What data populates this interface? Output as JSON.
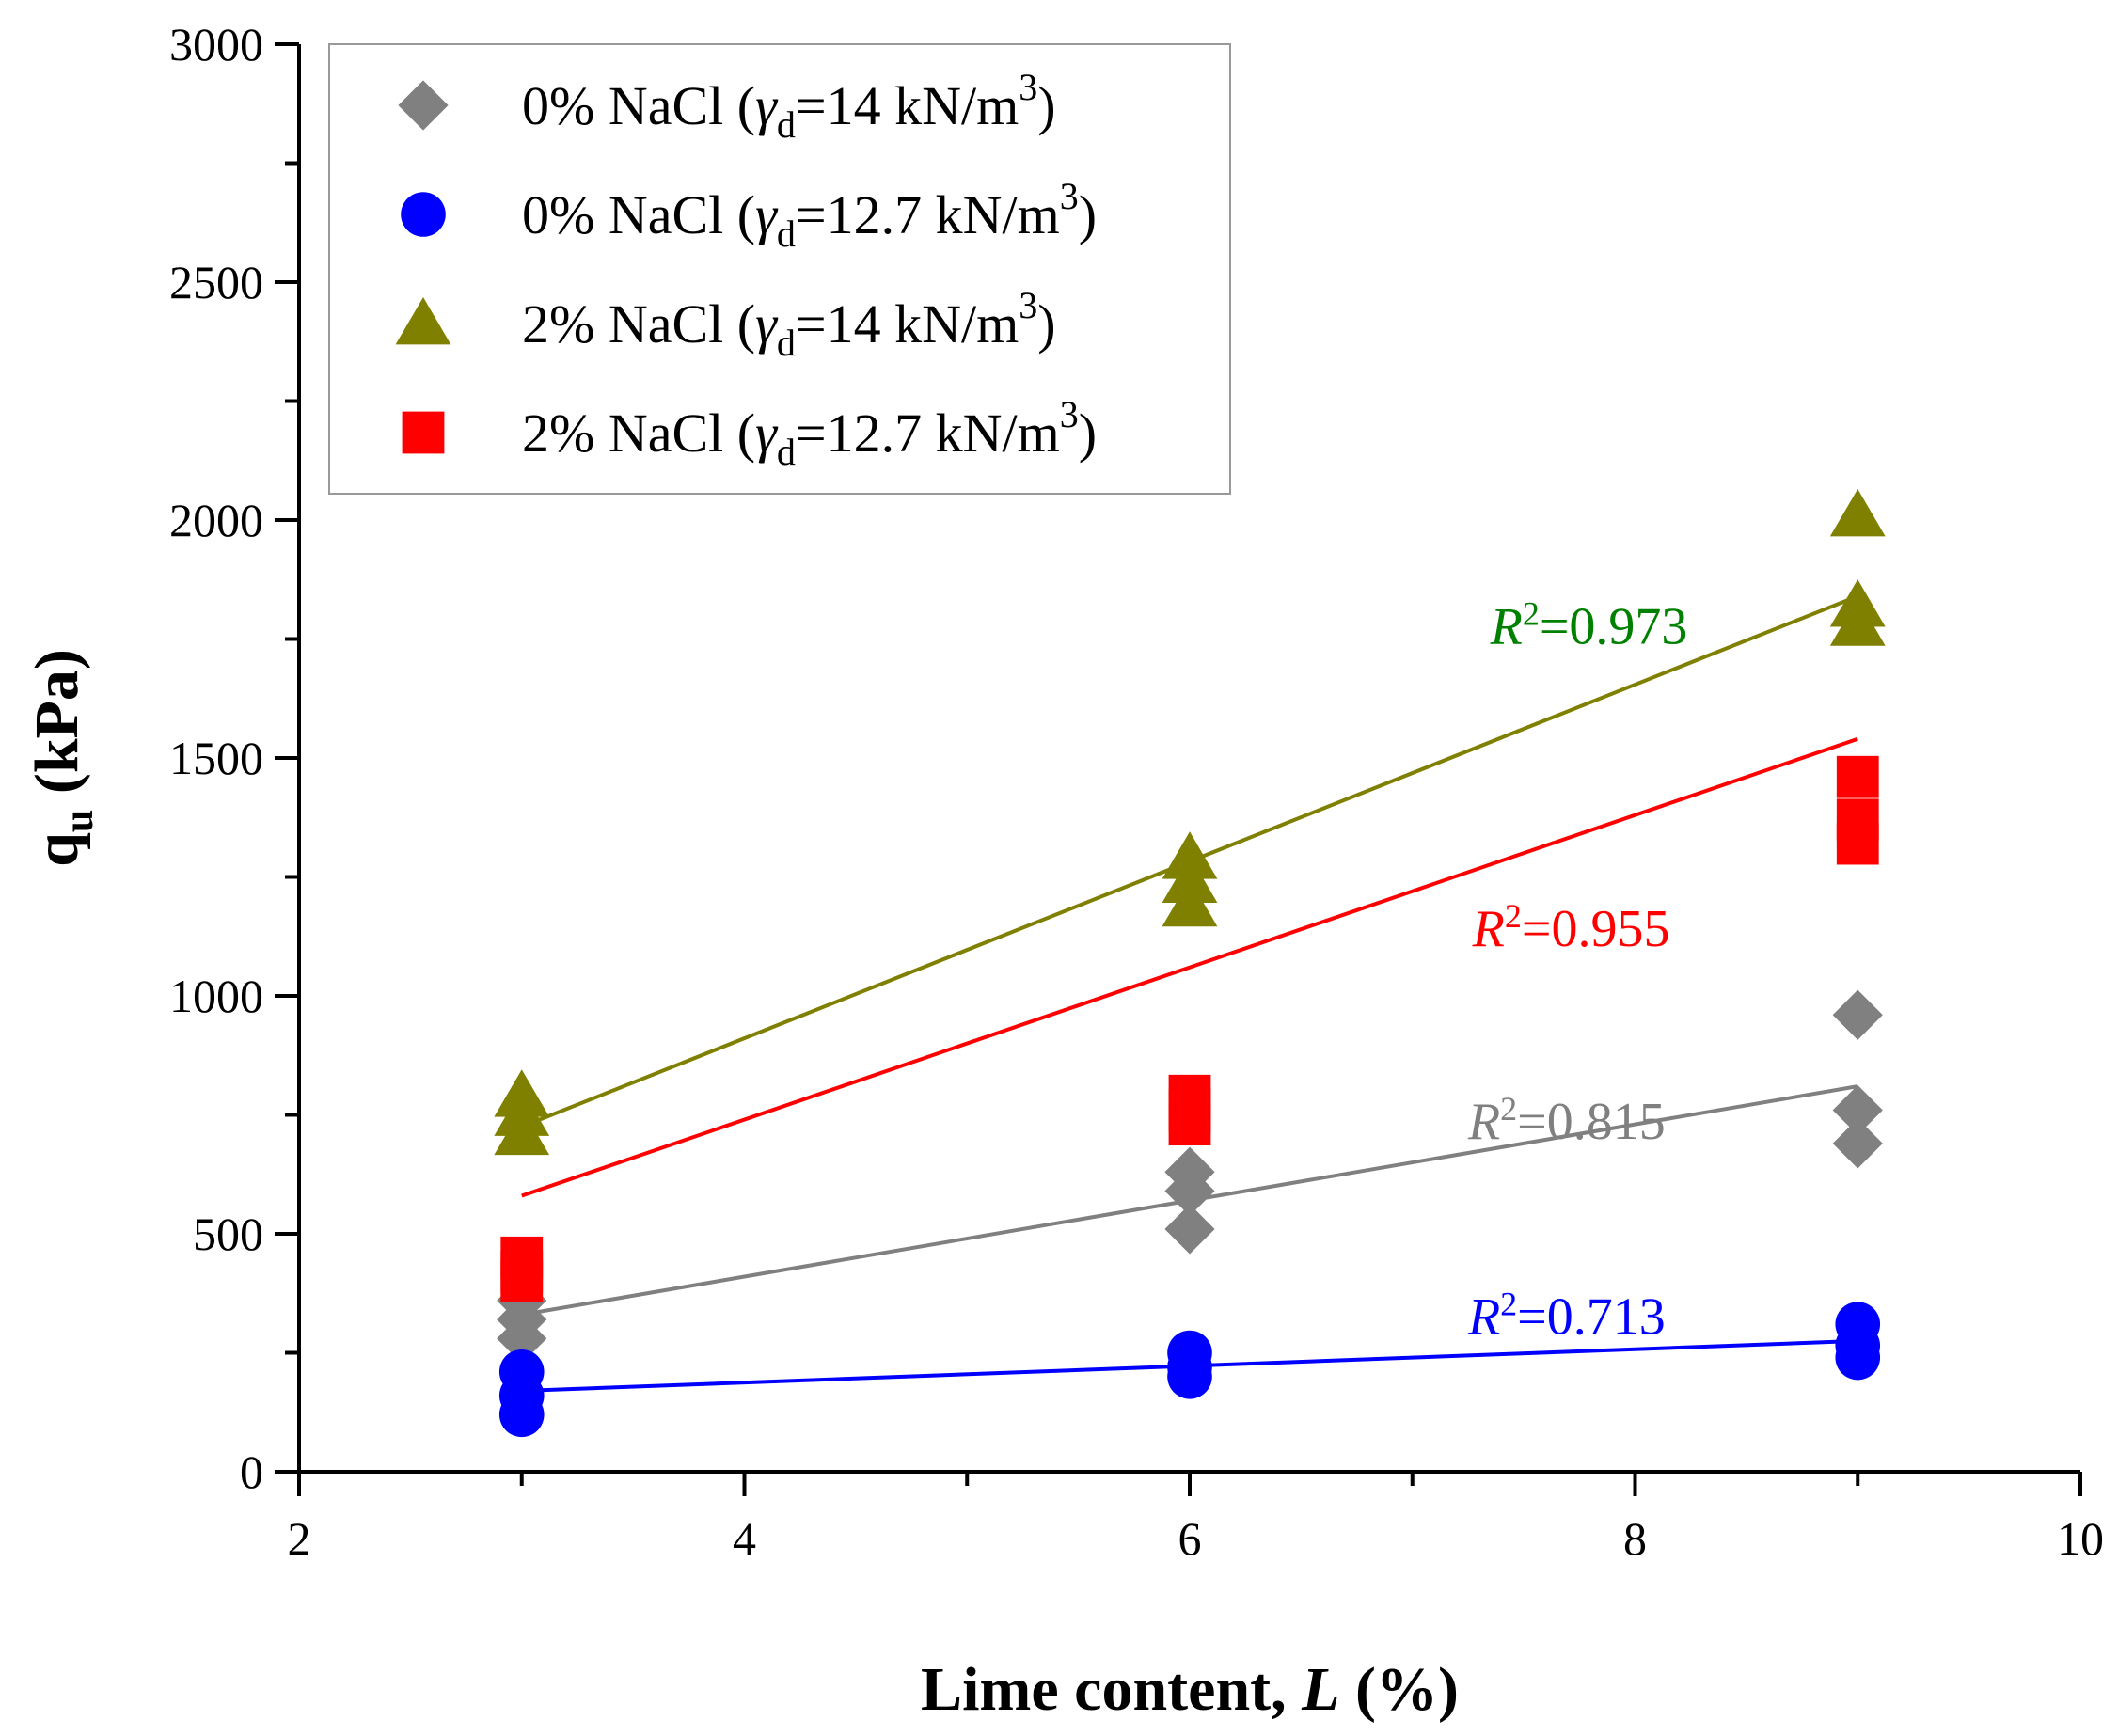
{
  "chart_data": {
    "type": "scatter",
    "title": "",
    "xlabel_main": "Lime content, ",
    "xlabel_italic": "L",
    "xlabel_unit": " (%)",
    "ylabel_main": "q",
    "ylabel_sub": "u",
    "ylabel_unit": " (kPa)",
    "xlim": [
      2,
      10
    ],
    "ylim": [
      0,
      3000
    ],
    "x_ticks": [
      2,
      4,
      6,
      8,
      10
    ],
    "x_tick_labels": [
      "2",
      "4",
      "6",
      "8",
      "10"
    ],
    "y_ticks": [
      0,
      500,
      1000,
      1500,
      2000,
      2500,
      3000
    ],
    "y_tick_labels": [
      "0",
      "500",
      "1000",
      "1500",
      "2000",
      "2500",
      "3000"
    ],
    "grid": false,
    "legend_position": "top-left",
    "series": [
      {
        "name": "0% NaCl (γd=14 kN/m3)",
        "legend_prefix": "0% NaCl (",
        "legend_gamma": "γ",
        "legend_gamma_sub": "d",
        "legend_value": "=14 kN/m",
        "legend_exp": "3",
        "legend_suffix": ")",
        "marker": "diamond",
        "color": "#808080",
        "trend_color": "#808080",
        "points": [
          {
            "x": 3,
            "y": 280
          },
          {
            "x": 3,
            "y": 320
          },
          {
            "x": 3,
            "y": 360
          },
          {
            "x": 6,
            "y": 510
          },
          {
            "x": 6,
            "y": 590
          },
          {
            "x": 6,
            "y": 630
          },
          {
            "x": 9,
            "y": 690
          },
          {
            "x": 9,
            "y": 760
          },
          {
            "x": 9,
            "y": 960
          }
        ],
        "trendline": [
          {
            "x": 3,
            "y": 330
          },
          {
            "x": 9,
            "y": 810
          }
        ],
        "r2_label": "=0.815",
        "r2_color": "#808080",
        "r2_anchor": {
          "x": 7.25,
          "y": 700
        }
      },
      {
        "name": "0% NaCl (γd=12.7 kN/m3)",
        "legend_prefix": "0% NaCl (",
        "legend_gamma": "γ",
        "legend_gamma_sub": "d",
        "legend_value": "=12.7 kN/m",
        "legend_exp": "3",
        "legend_suffix": ")",
        "marker": "circle",
        "color": "#0000ff",
        "trend_color": "#0000ff",
        "points": [
          {
            "x": 3,
            "y": 120
          },
          {
            "x": 3,
            "y": 160
          },
          {
            "x": 3,
            "y": 210
          },
          {
            "x": 6,
            "y": 200
          },
          {
            "x": 6,
            "y": 220
          },
          {
            "x": 6,
            "y": 250
          },
          {
            "x": 9,
            "y": 240
          },
          {
            "x": 9,
            "y": 265
          },
          {
            "x": 9,
            "y": 310
          }
        ],
        "trendline": [
          {
            "x": 3,
            "y": 170
          },
          {
            "x": 9,
            "y": 275
          }
        ],
        "r2_label": "=0.713",
        "r2_color": "#0000ff",
        "r2_anchor": {
          "x": 7.25,
          "y": 290
        }
      },
      {
        "name": "2% NaCl (γd=14 kN/m3)",
        "legend_prefix": "2% NaCl (",
        "legend_gamma": "γ",
        "legend_gamma_sub": "d",
        "legend_value": "=14 kN/m",
        "legend_exp": "3",
        "legend_suffix": ")",
        "marker": "triangle",
        "color": "#808000",
        "trend_color": "#808000",
        "points": [
          {
            "x": 3,
            "y": 710
          },
          {
            "x": 3,
            "y": 750
          },
          {
            "x": 3,
            "y": 790
          },
          {
            "x": 6,
            "y": 1190
          },
          {
            "x": 6,
            "y": 1240
          },
          {
            "x": 6,
            "y": 1290
          },
          {
            "x": 9,
            "y": 1780
          },
          {
            "x": 9,
            "y": 1820
          },
          {
            "x": 9,
            "y": 2010
          }
        ],
        "trendline": [
          {
            "x": 3,
            "y": 725
          },
          {
            "x": 9,
            "y": 1840
          }
        ],
        "r2_label": "=0.973",
        "r2_color": "#008000",
        "r2_anchor": {
          "x": 7.35,
          "y": 1740
        }
      },
      {
        "name": "2% NaCl (γd=12.7 kN/m3)",
        "legend_prefix": "2% NaCl (",
        "legend_gamma": "γ",
        "legend_gamma_sub": "d",
        "legend_value": "=12.7 kN/m",
        "legend_exp": "3",
        "legend_suffix": ")",
        "marker": "square",
        "color": "#ff0000",
        "trend_color": "#ff0000",
        "points": [
          {
            "x": 3,
            "y": 400
          },
          {
            "x": 3,
            "y": 420
          },
          {
            "x": 3,
            "y": 450
          },
          {
            "x": 6,
            "y": 730
          },
          {
            "x": 6,
            "y": 760
          },
          {
            "x": 6,
            "y": 790
          },
          {
            "x": 9,
            "y": 1320
          },
          {
            "x": 9,
            "y": 1370
          },
          {
            "x": 9,
            "y": 1460
          }
        ],
        "trendline": [
          {
            "x": 3,
            "y": 580
          },
          {
            "x": 9,
            "y": 1540
          }
        ],
        "r2_label": "=0.955",
        "r2_color": "#ff0000",
        "r2_anchor": {
          "x": 7.27,
          "y": 1105
        }
      }
    ],
    "r2_symbol": "R",
    "r2_exp": "2"
  }
}
